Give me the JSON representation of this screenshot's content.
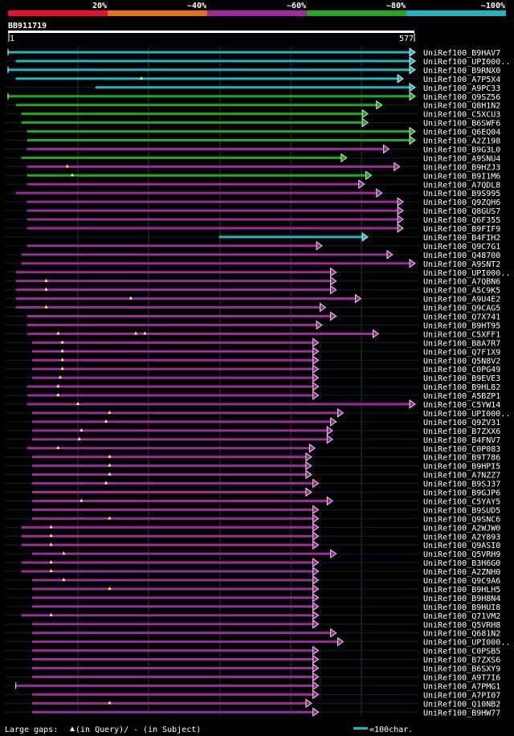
{
  "legend": {
    "labels": [
      "20%",
      "~40%",
      "~60%",
      "~80%",
      "~100%"
    ],
    "colors": [
      "#e8102e",
      "#e87214",
      "#9e2a9c",
      "#22a81e",
      "#1eb6c2"
    ]
  },
  "query": {
    "name": "BB911719",
    "start_label": "1",
    "end_label": "577",
    "length": 577
  },
  "footer": {
    "gaps_prefix": "Large gaps: ",
    "gaps_query": "(in Query)/",
    "gaps_subject": "- (in Subject)",
    "scale_label": "=100char."
  },
  "chart_data": {
    "type": "alignment-map",
    "axis": {
      "min": 1,
      "max": 577,
      "unit": "query position (char)",
      "scale_bar": 100
    },
    "identity_bins": [
      "20%",
      "~40%",
      "~60%",
      "~80%",
      "~100%"
    ],
    "hits": [
      {
        "name": "UniRef100_B9HAV7",
        "start": 1,
        "end": 577,
        "identity": "~100%",
        "left_tick": true
      },
      {
        "name": "UniRef100_UPI000..",
        "start": 12,
        "end": 577,
        "identity": "~100%",
        "qgaps": []
      },
      {
        "name": "UniRef100_B9RNX0",
        "start": 1,
        "end": 577,
        "identity": "~100%",
        "left_tick": true
      },
      {
        "name": "UniRef100_A7P5X4",
        "start": 12,
        "end": 560,
        "identity": "~100%",
        "qgaps": [
          190
        ]
      },
      {
        "name": "UniRef100_A9PC33",
        "start": 125,
        "end": 577,
        "identity": "~100%",
        "qgaps": []
      },
      {
        "name": "UniRef100_Q9SZ56",
        "start": 1,
        "end": 577,
        "identity": "~80%",
        "left_tick": true
      },
      {
        "name": "UniRef100_Q8H1N2",
        "start": 12,
        "end": 530,
        "identity": "~80%"
      },
      {
        "name": "UniRef100_C5XCU3",
        "start": 20,
        "end": 510,
        "identity": "~80%"
      },
      {
        "name": "UniRef100_B6SWF6",
        "start": 20,
        "end": 510,
        "identity": "~80%"
      },
      {
        "name": "UniRef100_Q6EQ04",
        "start": 28,
        "end": 577,
        "identity": "~80%"
      },
      {
        "name": "UniRef100_A2Z198",
        "start": 28,
        "end": 577,
        "identity": "~80%"
      },
      {
        "name": "UniRef100_B9G3L0",
        "start": 28,
        "end": 540,
        "identity": "~60%"
      },
      {
        "name": "UniRef100_A9SNU4",
        "start": 20,
        "end": 480,
        "identity": "~80%"
      },
      {
        "name": "UniRef100_B9HZJ3",
        "start": 28,
        "end": 555,
        "identity": "~60%",
        "qgaps": [
          85
        ]
      },
      {
        "name": "UniRef100_B9I1M6",
        "start": 28,
        "end": 515,
        "identity": "~80%",
        "qgaps": [
          92
        ]
      },
      {
        "name": "UniRef100_A7QDL8",
        "start": 28,
        "end": 505,
        "identity": "~60%"
      },
      {
        "name": "UniRef100_B9S995",
        "start": 12,
        "end": 530,
        "identity": "~60%"
      },
      {
        "name": "UniRef100_Q9ZQH6",
        "start": 28,
        "end": 560,
        "identity": "~60%"
      },
      {
        "name": "UniRef100_Q8GUS7",
        "start": 28,
        "end": 560,
        "identity": "~60%"
      },
      {
        "name": "UniRef100_Q6F355",
        "start": 28,
        "end": 560,
        "identity": "~60%"
      },
      {
        "name": "UniRef100_B9FIF9",
        "start": 28,
        "end": 560,
        "identity": "~60%"
      },
      {
        "name": "UniRef100_B4FIH2",
        "start": 300,
        "end": 510,
        "identity": "~100%"
      },
      {
        "name": "UniRef100_Q9C7G1",
        "start": 28,
        "end": 445,
        "identity": "~60%"
      },
      {
        "name": "UniRef100_Q48700",
        "start": 20,
        "end": 545,
        "identity": "~60%"
      },
      {
        "name": "UniRef100_A9SNT2",
        "start": 20,
        "end": 577,
        "identity": "~60%"
      },
      {
        "name": "UniRef100_UPI000..",
        "start": 12,
        "end": 465,
        "identity": "~60%"
      },
      {
        "name": "UniRef100_A7QBN6",
        "start": 12,
        "end": 465,
        "identity": "~60%",
        "qgaps": [
          55
        ]
      },
      {
        "name": "UniRef100_A5C9K5",
        "start": 12,
        "end": 465,
        "identity": "~60%",
        "qgaps": [
          55
        ]
      },
      {
        "name": "UniRef100_A9U4E2",
        "start": 12,
        "end": 500,
        "identity": "~60%",
        "qgaps": [
          175
        ]
      },
      {
        "name": "UniRef100_Q9CAG5",
        "start": 12,
        "end": 450,
        "identity": "~60%",
        "qgaps": [
          55
        ]
      },
      {
        "name": "UniRef100_Q7X741",
        "start": 28,
        "end": 465,
        "identity": "~60%"
      },
      {
        "name": "UniRef100_B9HT95",
        "start": 28,
        "end": 445,
        "identity": "~60%"
      },
      {
        "name": "UniRef100_C5XFF1",
        "start": 28,
        "end": 525,
        "identity": "~60%",
        "qgaps": [
          72,
          182,
          195
        ]
      },
      {
        "name": "UniRef100_B8A7R7",
        "start": 35,
        "end": 440,
        "identity": "~60%",
        "qgaps": [
          78
        ]
      },
      {
        "name": "UniRef100_Q7F1X9",
        "start": 35,
        "end": 440,
        "identity": "~60%",
        "qgaps": [
          78
        ]
      },
      {
        "name": "UniRef100_Q5N8V2",
        "start": 35,
        "end": 440,
        "identity": "~60%",
        "qgaps": [
          78
        ]
      },
      {
        "name": "UniRef100_C0PG49",
        "start": 35,
        "end": 440,
        "identity": "~60%",
        "qgaps": [
          78
        ]
      },
      {
        "name": "UniRef100_B9EVE3",
        "start": 35,
        "end": 440,
        "identity": "~60%",
        "qgaps": [
          75
        ]
      },
      {
        "name": "UniRef100_B9HL82",
        "start": 28,
        "end": 440,
        "identity": "~60%",
        "qgaps": [
          72
        ]
      },
      {
        "name": "UniRef100_A5BZP1",
        "start": 28,
        "end": 440,
        "identity": "~60%",
        "qgaps": [
          72
        ]
      },
      {
        "name": "UniRef100_C5YW14",
        "start": 28,
        "end": 577,
        "identity": "~60%",
        "qgaps": [
          100
        ]
      },
      {
        "name": "UniRef100_UPI000..",
        "start": 35,
        "end": 475,
        "identity": "~60%",
        "qgaps": [
          145
        ]
      },
      {
        "name": "UniRef100_Q9ZV31",
        "start": 35,
        "end": 465,
        "identity": "~60%",
        "qgaps": [
          140
        ]
      },
      {
        "name": "UniRef100_B7ZXX6",
        "start": 35,
        "end": 460,
        "identity": "~60%",
        "qgaps": [
          105
        ]
      },
      {
        "name": "UniRef100_B4FNV7",
        "start": 35,
        "end": 460,
        "identity": "~60%",
        "qgaps": [
          102
        ]
      },
      {
        "name": "UniRef100_C0P083",
        "start": 28,
        "end": 435,
        "identity": "~60%",
        "qgaps": [
          72
        ]
      },
      {
        "name": "UniRef100_B9T786",
        "start": 35,
        "end": 430,
        "identity": "~60%",
        "qgaps": [
          145
        ]
      },
      {
        "name": "UniRef100_B9HPI5",
        "start": 35,
        "end": 430,
        "identity": "~60%",
        "qgaps": [
          145
        ]
      },
      {
        "name": "UniRef100_A7NZZ7",
        "start": 35,
        "end": 430,
        "identity": "~60%",
        "qgaps": [
          145
        ]
      },
      {
        "name": "UniRef100_B9SJ37",
        "start": 35,
        "end": 440,
        "identity": "~60%",
        "qgaps": [
          140
        ]
      },
      {
        "name": "UniRef100_B9GJP6",
        "start": 35,
        "end": 430,
        "identity": "~60%",
        "qgaps": []
      },
      {
        "name": "UniRef100_C5YAY5",
        "start": 35,
        "end": 460,
        "identity": "~60%",
        "qgaps": [
          105
        ]
      },
      {
        "name": "UniRef100_B9SUD5",
        "start": 35,
        "end": 440,
        "identity": "~60%"
      },
      {
        "name": "UniRef100_Q9SNC6",
        "start": 35,
        "end": 440,
        "identity": "~60%",
        "qgaps": [
          145
        ]
      },
      {
        "name": "UniRef100_A2WJW0",
        "start": 20,
        "end": 440,
        "identity": "~60%",
        "qgaps": [
          62
        ]
      },
      {
        "name": "UniRef100_A2Y893",
        "start": 20,
        "end": 440,
        "identity": "~60%",
        "qgaps": [
          62
        ]
      },
      {
        "name": "UniRef100_Q9ASI0",
        "start": 20,
        "end": 440,
        "identity": "~60%",
        "qgaps": [
          62
        ]
      },
      {
        "name": "UniRef100_Q5VRH9",
        "start": 35,
        "end": 465,
        "identity": "~60%",
        "qgaps": [
          80
        ]
      },
      {
        "name": "UniRef100_B3H6G0",
        "start": 20,
        "end": 440,
        "identity": "~60%",
        "qgaps": [
          62
        ]
      },
      {
        "name": "UniRef100_A2ZNH0",
        "start": 20,
        "end": 440,
        "identity": "~60%",
        "qgaps": [
          62
        ]
      },
      {
        "name": "UniRef100_Q9C9A6",
        "start": 35,
        "end": 440,
        "identity": "~60%",
        "qgaps": [
          80
        ]
      },
      {
        "name": "UniRef100_B9HLH5",
        "start": 35,
        "end": 440,
        "identity": "~60%",
        "qgaps": [
          145
        ]
      },
      {
        "name": "UniRef100_B9H8N4",
        "start": 35,
        "end": 440,
        "identity": "~60%"
      },
      {
        "name": "UniRef100_B9HUI8",
        "start": 35,
        "end": 440,
        "identity": "~60%"
      },
      {
        "name": "UniRef100_Q71VM2",
        "start": 20,
        "end": 440,
        "identity": "~60%",
        "qgaps": [
          62
        ]
      },
      {
        "name": "UniRef100_Q5VRH8",
        "start": 35,
        "end": 440,
        "identity": "~60%"
      },
      {
        "name": "UniRef100_Q681N2",
        "start": 35,
        "end": 465,
        "identity": "~60%"
      },
      {
        "name": "UniRef100_UPI000..",
        "start": 35,
        "end": 475,
        "identity": "~60%"
      },
      {
        "name": "UniRef100_C0PSB5",
        "start": 35,
        "end": 440,
        "identity": "~60%"
      },
      {
        "name": "UniRef100_B7ZXS6",
        "start": 35,
        "end": 440,
        "identity": "~60%"
      },
      {
        "name": "UniRef100_B6SXY9",
        "start": 35,
        "end": 440,
        "identity": "~60%"
      },
      {
        "name": "UniRef100_A9T7I6",
        "start": 35,
        "end": 440,
        "identity": "~60%"
      },
      {
        "name": "UniRef100_A7PMG1",
        "start": 12,
        "end": 440,
        "identity": "~60%",
        "left_tick": true
      },
      {
        "name": "UniRef100_A7PI07",
        "start": 35,
        "end": 440,
        "identity": "~60%"
      },
      {
        "name": "UniRef100_Q10NB2",
        "start": 35,
        "end": 430,
        "identity": "~60%",
        "qgaps": [
          145
        ]
      },
      {
        "name": "UniRef100_B9HW77",
        "start": 35,
        "end": 440,
        "identity": "~60%"
      }
    ]
  }
}
